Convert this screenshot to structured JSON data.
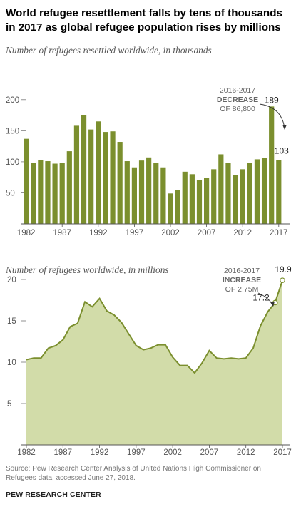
{
  "title": "World refugee resettlement falls by tens of thousands in 2017 as global refugee population rises by millions",
  "chart_data": [
    {
      "type": "bar",
      "title": "Number of refugees resettled worldwide, in thousands",
      "x": [
        1982,
        1983,
        1984,
        1985,
        1986,
        1987,
        1988,
        1989,
        1990,
        1991,
        1992,
        1993,
        1994,
        1995,
        1996,
        1997,
        1998,
        1999,
        2000,
        2001,
        2002,
        2003,
        2004,
        2005,
        2006,
        2007,
        2008,
        2009,
        2010,
        2011,
        2012,
        2013,
        2014,
        2015,
        2016,
        2017
      ],
      "values": [
        137,
        98,
        103,
        101,
        97,
        98,
        117,
        158,
        175,
        152,
        165,
        148,
        149,
        132,
        101,
        91,
        102,
        107,
        98,
        91,
        49,
        55,
        84,
        80,
        71,
        74,
        88,
        112,
        98,
        79,
        88,
        98,
        104,
        106,
        189,
        103
      ],
      "ylim": [
        0,
        210
      ],
      "yticks": [
        "200",
        "150",
        "100",
        "50"
      ],
      "ytick_values": [
        200,
        150,
        100,
        50
      ],
      "xtick_labels": [
        "1982",
        "1987",
        "1992",
        "1997",
        "2002",
        "2007",
        "2012",
        "2017"
      ],
      "xtick_values": [
        1982,
        1987,
        1992,
        1997,
        2002,
        2007,
        2012,
        2017
      ],
      "color": "#7b8f2e",
      "data_labels": [
        {
          "year": 2016,
          "text": "189"
        },
        {
          "year": 2017,
          "text": "103"
        }
      ],
      "annotation": {
        "line1": "2016-2017",
        "line2": "DECREASE",
        "line3": "OF 86,800"
      }
    },
    {
      "type": "area",
      "title": "Number of refugees worldwide, in millions",
      "x": [
        1982,
        1983,
        1984,
        1985,
        1986,
        1987,
        1988,
        1989,
        1990,
        1991,
        1992,
        1993,
        1994,
        1995,
        1996,
        1997,
        1998,
        1999,
        2000,
        2001,
        2002,
        2003,
        2004,
        2005,
        2006,
        2007,
        2008,
        2009,
        2010,
        2011,
        2012,
        2013,
        2014,
        2015,
        2016,
        2017
      ],
      "values": [
        10.3,
        10.5,
        10.5,
        11.7,
        12.0,
        12.7,
        14.3,
        14.7,
        17.3,
        16.7,
        17.7,
        16.2,
        15.7,
        14.8,
        13.4,
        12.0,
        11.5,
        11.7,
        12.1,
        12.1,
        10.6,
        9.6,
        9.6,
        8.7,
        9.9,
        11.4,
        10.5,
        10.4,
        10.5,
        10.4,
        10.5,
        11.7,
        14.4,
        16.1,
        17.2,
        19.9
      ],
      "ylim": [
        0,
        21.5
      ],
      "yticks": [
        "20",
        "15",
        "10",
        "5"
      ],
      "ytick_values": [
        20,
        15,
        10,
        5
      ],
      "xtick_labels": [
        "1982",
        "1987",
        "1992",
        "1997",
        "2002",
        "2007",
        "2012",
        "2017"
      ],
      "xtick_values": [
        1982,
        1987,
        1992,
        1997,
        2002,
        2007,
        2012,
        2017
      ],
      "fill_color": "#d2dca9",
      "line_color": "#7b8f2e",
      "data_labels": [
        {
          "year": 2016,
          "text": "17.2"
        },
        {
          "year": 2017,
          "text": "19.9"
        }
      ],
      "annotation": {
        "line1": "2016-2017",
        "line2": "INCREASE",
        "line3": "OF 2.75M"
      }
    }
  ],
  "source": "Note: Source: Pew Research Center Analysis of United Nations High Commissioner on Refugees data, accessed June 27, 2018.",
  "brand": "PEW RESEARCH CENTER"
}
